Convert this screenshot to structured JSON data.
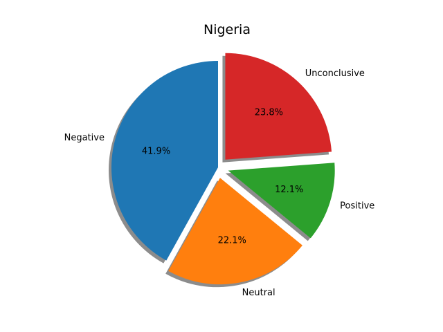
{
  "chart_data": {
    "type": "pie",
    "title": "Nigeria",
    "categories": [
      "Negative",
      "Neutral",
      "Positive",
      "Unconclusive"
    ],
    "values": [
      41.9,
      22.1,
      12.1,
      23.8
    ],
    "percent_labels": [
      "41.9%",
      "22.1%",
      "12.1%",
      "23.8%"
    ],
    "colors": [
      "#1f77b4",
      "#ff7f0e",
      "#2ca02c",
      "#d62728"
    ],
    "exploded": [
      false,
      true,
      true,
      true
    ],
    "shadow": true,
    "start_angle_deg": 90,
    "direction": "counterclockwise"
  }
}
